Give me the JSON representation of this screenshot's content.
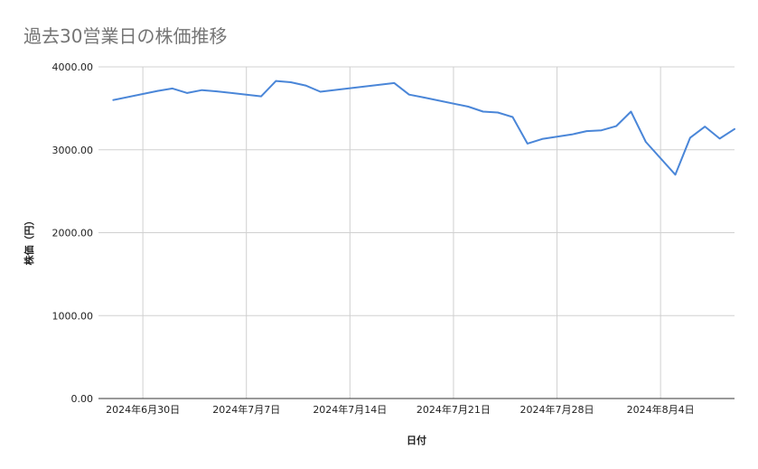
{
  "chart_data": {
    "type": "line",
    "title": "過去30営業日の株価推移",
    "xlabel": "日付",
    "ylabel": "株価（円）",
    "ylim": [
      0,
      4000
    ],
    "y_ticks": [
      "0.00",
      "1000.00",
      "2000.00",
      "3000.00",
      "4000.00"
    ],
    "x_range": [
      "2024-06-27",
      "2024-08-09"
    ],
    "x_ticks": [
      {
        "date": "2024-06-30",
        "label": "2024年6月30日"
      },
      {
        "date": "2024-07-07",
        "label": "2024年7月7日"
      },
      {
        "date": "2024-07-14",
        "label": "2024年7月14日"
      },
      {
        "date": "2024-07-21",
        "label": "2024年7月21日"
      },
      {
        "date": "2024-07-28",
        "label": "2024年7月28日"
      },
      {
        "date": "2024-08-04",
        "label": "2024年8月4日"
      }
    ],
    "grid": true,
    "series": [
      {
        "color": "#4a86d8",
        "points": [
          {
            "x": "2024-06-28",
            "y": 3600
          },
          {
            "x": "2024-07-01",
            "y": 3710
          },
          {
            "x": "2024-07-02",
            "y": 3740
          },
          {
            "x": "2024-07-03",
            "y": 3685
          },
          {
            "x": "2024-07-04",
            "y": 3720
          },
          {
            "x": "2024-07-05",
            "y": 3705
          },
          {
            "x": "2024-07-08",
            "y": 3645
          },
          {
            "x": "2024-07-09",
            "y": 3830
          },
          {
            "x": "2024-07-10",
            "y": 3815
          },
          {
            "x": "2024-07-11",
            "y": 3775
          },
          {
            "x": "2024-07-12",
            "y": 3700
          },
          {
            "x": "2024-07-17",
            "y": 3805
          },
          {
            "x": "2024-07-18",
            "y": 3665
          },
          {
            "x": "2024-07-19",
            "y": 3630
          },
          {
            "x": "2024-07-22",
            "y": 3520
          },
          {
            "x": "2024-07-23",
            "y": 3460
          },
          {
            "x": "2024-07-24",
            "y": 3450
          },
          {
            "x": "2024-07-25",
            "y": 3395
          },
          {
            "x": "2024-07-26",
            "y": 3075
          },
          {
            "x": "2024-07-27",
            "y": 3130
          },
          {
            "x": "2024-07-29",
            "y": 3185
          },
          {
            "x": "2024-07-30",
            "y": 3225
          },
          {
            "x": "2024-07-31",
            "y": 3235
          },
          {
            "x": "2024-08-01",
            "y": 3285
          },
          {
            "x": "2024-08-02",
            "y": 3460
          },
          {
            "x": "2024-08-03",
            "y": 3095
          },
          {
            "x": "2024-08-05",
            "y": 2700
          },
          {
            "x": "2024-08-06",
            "y": 3145
          },
          {
            "x": "2024-08-07",
            "y": 3280
          },
          {
            "x": "2024-08-08",
            "y": 3135
          },
          {
            "x": "2024-08-09",
            "y": 3250
          }
        ]
      }
    ]
  }
}
